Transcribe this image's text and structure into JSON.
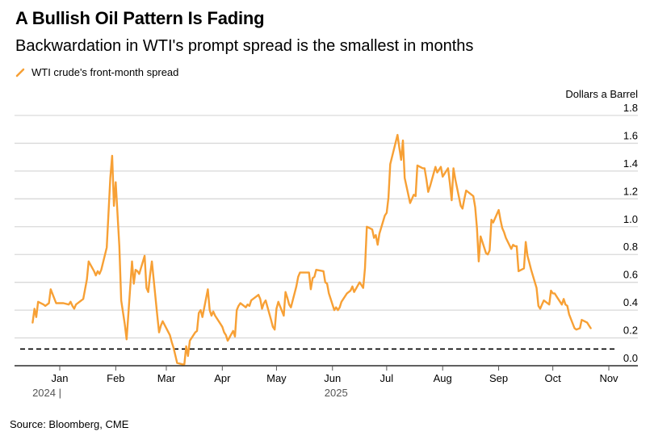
{
  "header": {
    "title": "A Bullish Oil Pattern Is Fading",
    "subtitle": "Backwardation in WTI's prompt spread is the smallest in months"
  },
  "legend": {
    "label": "WTI crude's front-month spread",
    "icon": "line-swatch-icon",
    "color": "#f7a035"
  },
  "footer": {
    "source": "Source: Bloomberg, CME"
  },
  "colors": {
    "series": "#f7a035",
    "grid": "#d9d9d9",
    "axis": "#000000",
    "reference_line": "#000000"
  },
  "chart_data": {
    "type": "line",
    "title": "A Bullish Oil Pattern Is Fading",
    "subtitle": "Backwardation in WTI's prompt spread is the smallest in months",
    "ylabel": "Dollars a Barrel",
    "xlabel": "",
    "ylim": [
      0.0,
      1.8
    ],
    "y_ticks": [
      "0.0",
      "0.2",
      "0.4",
      "0.6",
      "0.8",
      "1.0",
      "1.2",
      "1.4",
      "1.6",
      "1.8"
    ],
    "y_tick_values": [
      0.0,
      0.2,
      0.4,
      0.6,
      0.8,
      1.0,
      1.2,
      1.4,
      1.6,
      1.8
    ],
    "x_range": [
      "2024-12-13",
      "2025-11-07"
    ],
    "x_ticks": [
      {
        "label": "Jan",
        "date": "2025-01-01"
      },
      {
        "label": "Feb",
        "date": "2025-02-01"
      },
      {
        "label": "Mar",
        "date": "2025-03-01"
      },
      {
        "label": "Apr",
        "date": "2025-04-01"
      },
      {
        "label": "May",
        "date": "2025-05-01"
      },
      {
        "label": "Jun",
        "date": "2025-06-01"
      },
      {
        "label": "Jul",
        "date": "2025-07-01"
      },
      {
        "label": "Aug",
        "date": "2025-08-01"
      },
      {
        "label": "Sep",
        "date": "2025-09-01"
      },
      {
        "label": "Oct",
        "date": "2025-10-01"
      },
      {
        "label": "Nov",
        "date": "2025-11-01"
      }
    ],
    "year_labels": [
      {
        "label": "2024 |",
        "date": "2025-01-01",
        "marker": true
      },
      {
        "label": "2025",
        "date": "2025-06-01",
        "marker": false
      }
    ],
    "grid": true,
    "legend_position": "top-left",
    "y_axis_side": "right",
    "reference_line": {
      "value": 0.12,
      "style": "dashed",
      "label": ""
    },
    "series": [
      {
        "name": "WTI crude's front-month spread",
        "color": "#f7a035",
        "points": [
          [
            "2024-12-17",
            0.31
          ],
          [
            "2024-12-18",
            0.41
          ],
          [
            "2024-12-19",
            0.35
          ],
          [
            "2024-12-20",
            0.46
          ],
          [
            "2024-12-23",
            0.44
          ],
          [
            "2024-12-24",
            0.43
          ],
          [
            "2024-12-26",
            0.45
          ],
          [
            "2024-12-27",
            0.55
          ],
          [
            "2024-12-30",
            0.45
          ],
          [
            "2025-01-02",
            0.45
          ],
          [
            "2025-01-03",
            0.45
          ],
          [
            "2025-01-06",
            0.44
          ],
          [
            "2025-01-07",
            0.46
          ],
          [
            "2025-01-08",
            0.43
          ],
          [
            "2025-01-09",
            0.41
          ],
          [
            "2025-01-10",
            0.44
          ],
          [
            "2025-01-13",
            0.47
          ],
          [
            "2025-01-14",
            0.48
          ],
          [
            "2025-01-16",
            0.62
          ],
          [
            "2025-01-17",
            0.75
          ],
          [
            "2025-01-20",
            0.68
          ],
          [
            "2025-01-21",
            0.65
          ],
          [
            "2025-01-22",
            0.68
          ],
          [
            "2025-01-23",
            0.66
          ],
          [
            "2025-01-24",
            0.69
          ],
          [
            "2025-01-27",
            0.85
          ],
          [
            "2025-01-28",
            1.1
          ],
          [
            "2025-01-29",
            1.35
          ],
          [
            "2025-01-30",
            1.51
          ],
          [
            "2025-01-31",
            1.15
          ],
          [
            "2025-02-01",
            1.32
          ],
          [
            "2025-02-03",
            0.86
          ],
          [
            "2025-02-04",
            0.47
          ],
          [
            "2025-02-06",
            0.3
          ],
          [
            "2025-02-07",
            0.19
          ],
          [
            "2025-02-10",
            0.75
          ],
          [
            "2025-02-11",
            0.59
          ],
          [
            "2025-02-12",
            0.69
          ],
          [
            "2025-02-13",
            0.68
          ],
          [
            "2025-02-14",
            0.66
          ],
          [
            "2025-02-17",
            0.79
          ],
          [
            "2025-02-18",
            0.56
          ],
          [
            "2025-02-19",
            0.53
          ],
          [
            "2025-02-20",
            0.65
          ],
          [
            "2025-02-21",
            0.75
          ],
          [
            "2025-02-24",
            0.36
          ],
          [
            "2025-02-25",
            0.24
          ],
          [
            "2025-02-26",
            0.29
          ],
          [
            "2025-02-27",
            0.32
          ],
          [
            "2025-03-03",
            0.22
          ],
          [
            "2025-03-04",
            0.17
          ],
          [
            "2025-03-05",
            0.13
          ],
          [
            "2025-03-07",
            0.02
          ],
          [
            "2025-03-10",
            0.01
          ],
          [
            "2025-03-11",
            0.01
          ],
          [
            "2025-03-12",
            0.14
          ],
          [
            "2025-03-13",
            0.07
          ],
          [
            "2025-03-14",
            0.18
          ],
          [
            "2025-03-17",
            0.24
          ],
          [
            "2025-03-18",
            0.25
          ],
          [
            "2025-03-19",
            0.38
          ],
          [
            "2025-03-20",
            0.4
          ],
          [
            "2025-03-21",
            0.35
          ],
          [
            "2025-03-24",
            0.55
          ],
          [
            "2025-03-25",
            0.4
          ],
          [
            "2025-03-26",
            0.36
          ],
          [
            "2025-03-27",
            0.39
          ],
          [
            "2025-03-28",
            0.36
          ],
          [
            "2025-03-31",
            0.3
          ],
          [
            "2025-04-01",
            0.28
          ],
          [
            "2025-04-02",
            0.24
          ],
          [
            "2025-04-03",
            0.22
          ],
          [
            "2025-04-04",
            0.18
          ],
          [
            "2025-04-07",
            0.25
          ],
          [
            "2025-04-08",
            0.21
          ],
          [
            "2025-04-09",
            0.4
          ],
          [
            "2025-04-10",
            0.43
          ],
          [
            "2025-04-11",
            0.45
          ],
          [
            "2025-04-14",
            0.42
          ],
          [
            "2025-04-15",
            0.44
          ],
          [
            "2025-04-16",
            0.43
          ],
          [
            "2025-04-17",
            0.47
          ],
          [
            "2025-04-21",
            0.51
          ],
          [
            "2025-04-22",
            0.48
          ],
          [
            "2025-04-23",
            0.41
          ],
          [
            "2025-04-24",
            0.45
          ],
          [
            "2025-04-25",
            0.47
          ],
          [
            "2025-04-28",
            0.33
          ],
          [
            "2025-04-29",
            0.28
          ],
          [
            "2025-04-30",
            0.26
          ],
          [
            "2025-05-01",
            0.41
          ],
          [
            "2025-05-02",
            0.46
          ],
          [
            "2025-05-05",
            0.36
          ],
          [
            "2025-05-06",
            0.53
          ],
          [
            "2025-05-07",
            0.49
          ],
          [
            "2025-05-08",
            0.44
          ],
          [
            "2025-05-09",
            0.42
          ],
          [
            "2025-05-12",
            0.57
          ],
          [
            "2025-05-13",
            0.64
          ],
          [
            "2025-05-14",
            0.67
          ],
          [
            "2025-05-15",
            0.67
          ],
          [
            "2025-05-16",
            0.67
          ],
          [
            "2025-05-19",
            0.67
          ],
          [
            "2025-05-20",
            0.55
          ],
          [
            "2025-05-21",
            0.63
          ],
          [
            "2025-05-22",
            0.64
          ],
          [
            "2025-05-23",
            0.69
          ],
          [
            "2025-05-27",
            0.68
          ],
          [
            "2025-05-28",
            0.6
          ],
          [
            "2025-05-29",
            0.59
          ],
          [
            "2025-05-30",
            0.52
          ],
          [
            "2025-06-02",
            0.4
          ],
          [
            "2025-06-03",
            0.42
          ],
          [
            "2025-06-04",
            0.4
          ],
          [
            "2025-06-05",
            0.42
          ],
          [
            "2025-06-06",
            0.46
          ],
          [
            "2025-06-09",
            0.52
          ],
          [
            "2025-06-10",
            0.53
          ],
          [
            "2025-06-11",
            0.54
          ],
          [
            "2025-06-12",
            0.57
          ],
          [
            "2025-06-13",
            0.53
          ],
          [
            "2025-06-16",
            0.6
          ],
          [
            "2025-06-17",
            0.58
          ],
          [
            "2025-06-18",
            0.56
          ],
          [
            "2025-06-19",
            0.7
          ],
          [
            "2025-06-20",
            1.0
          ],
          [
            "2025-06-23",
            0.98
          ],
          [
            "2025-06-24",
            0.92
          ],
          [
            "2025-06-25",
            0.94
          ],
          [
            "2025-06-26",
            0.87
          ],
          [
            "2025-06-27",
            0.95
          ],
          [
            "2025-06-30",
            1.08
          ],
          [
            "2025-07-01",
            1.1
          ],
          [
            "2025-07-02",
            1.21
          ],
          [
            "2025-07-03",
            1.45
          ],
          [
            "2025-07-07",
            1.66
          ],
          [
            "2025-07-08",
            1.57
          ],
          [
            "2025-07-09",
            1.48
          ],
          [
            "2025-07-10",
            1.62
          ],
          [
            "2025-07-11",
            1.35
          ],
          [
            "2025-07-14",
            1.17
          ],
          [
            "2025-07-15",
            1.2
          ],
          [
            "2025-07-16",
            1.23
          ],
          [
            "2025-07-17",
            1.22
          ],
          [
            "2025-07-18",
            1.44
          ],
          [
            "2025-07-21",
            1.42
          ],
          [
            "2025-07-22",
            1.42
          ],
          [
            "2025-07-23",
            1.34
          ],
          [
            "2025-07-24",
            1.25
          ],
          [
            "2025-07-25",
            1.29
          ],
          [
            "2025-07-28",
            1.43
          ],
          [
            "2025-07-29",
            1.39
          ],
          [
            "2025-07-30",
            1.41
          ],
          [
            "2025-07-31",
            1.43
          ],
          [
            "2025-08-01",
            1.36
          ],
          [
            "2025-08-04",
            1.42
          ],
          [
            "2025-08-05",
            1.31
          ],
          [
            "2025-08-06",
            1.19
          ],
          [
            "2025-08-07",
            1.42
          ],
          [
            "2025-08-08",
            1.34
          ],
          [
            "2025-08-11",
            1.15
          ],
          [
            "2025-08-12",
            1.13
          ],
          [
            "2025-08-13",
            1.2
          ],
          [
            "2025-08-14",
            1.26
          ],
          [
            "2025-08-15",
            1.25
          ],
          [
            "2025-08-18",
            1.22
          ],
          [
            "2025-08-19",
            1.14
          ],
          [
            "2025-08-20",
            0.99
          ],
          [
            "2025-08-21",
            0.75
          ],
          [
            "2025-08-22",
            0.93
          ],
          [
            "2025-08-25",
            0.81
          ],
          [
            "2025-08-26",
            0.8
          ],
          [
            "2025-08-27",
            0.83
          ],
          [
            "2025-08-28",
            1.05
          ],
          [
            "2025-08-29",
            1.03
          ],
          [
            "2025-09-01",
            1.12
          ],
          [
            "2025-09-02",
            1.05
          ],
          [
            "2025-09-03",
            0.99
          ],
          [
            "2025-09-04",
            0.96
          ],
          [
            "2025-09-05",
            0.92
          ],
          [
            "2025-09-08",
            0.84
          ],
          [
            "2025-09-09",
            0.87
          ],
          [
            "2025-09-10",
            0.86
          ],
          [
            "2025-09-11",
            0.86
          ],
          [
            "2025-09-12",
            0.68
          ],
          [
            "2025-09-15",
            0.7
          ],
          [
            "2025-09-16",
            0.89
          ],
          [
            "2025-09-17",
            0.79
          ],
          [
            "2025-09-18",
            0.74
          ],
          [
            "2025-09-19",
            0.69
          ],
          [
            "2025-09-22",
            0.56
          ],
          [
            "2025-09-23",
            0.43
          ],
          [
            "2025-09-24",
            0.41
          ],
          [
            "2025-09-25",
            0.44
          ],
          [
            "2025-09-26",
            0.47
          ],
          [
            "2025-09-29",
            0.44
          ],
          [
            "2025-09-30",
            0.54
          ],
          [
            "2025-10-01",
            0.52
          ],
          [
            "2025-10-02",
            0.52
          ],
          [
            "2025-10-03",
            0.5
          ],
          [
            "2025-10-06",
            0.44
          ],
          [
            "2025-10-07",
            0.48
          ],
          [
            "2025-10-08",
            0.44
          ],
          [
            "2025-10-09",
            0.43
          ],
          [
            "2025-10-10",
            0.37
          ],
          [
            "2025-10-13",
            0.27
          ],
          [
            "2025-10-14",
            0.26
          ],
          [
            "2025-10-16",
            0.27
          ],
          [
            "2025-10-17",
            0.33
          ],
          [
            "2025-10-20",
            0.31
          ],
          [
            "2025-10-21",
            0.29
          ],
          [
            "2025-10-22",
            0.27
          ]
        ]
      }
    ]
  }
}
